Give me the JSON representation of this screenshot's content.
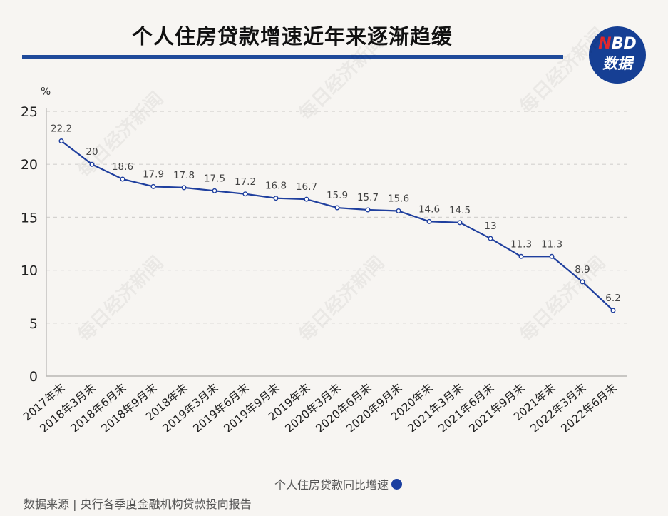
{
  "header": {
    "title": "个人住房贷款增速近年来逐渐趋缓",
    "logo_line1_accent": "N",
    "logo_line1_rest": "BD",
    "logo_line2": "数据"
  },
  "footer": {
    "legend_label": "个人住房贷款同比增速",
    "source": "数据来源 | 央行各季度金融机构贷款投向报告"
  },
  "watermark": "每日经济新闻",
  "colors": {
    "line": "#1f3f9e",
    "title_bar": "#1f4a9a",
    "logo_bg": "#163f94",
    "logo_accent": "#e0282e",
    "background": "#f7f5f2"
  },
  "chart_data": {
    "type": "line",
    "title": "个人住房贷款增速近年来逐渐趋缓",
    "xlabel": "",
    "ylabel": "%",
    "ylim": [
      0,
      25
    ],
    "yticks": [
      0,
      5,
      10,
      15,
      20,
      25
    ],
    "grid": "horizontal dashed",
    "legend_position": "bottom",
    "categories": [
      "2017年末",
      "2018年3月末",
      "2018年6月末",
      "2018年9月末",
      "2018年末",
      "2019年3月末",
      "2019年6月末",
      "2019年9月末",
      "2019年末",
      "2020年3月末",
      "2020年6月末",
      "2020年9月末",
      "2020年末",
      "2021年3月末",
      "2021年6月末",
      "2021年9月末",
      "2021年末",
      "2022年3月末",
      "2022年6月末"
    ],
    "series": [
      {
        "name": "个人住房贷款同比增速",
        "values": [
          22.2,
          20,
          18.6,
          17.9,
          17.8,
          17.5,
          17.2,
          16.8,
          16.7,
          15.9,
          15.7,
          15.6,
          14.6,
          14.5,
          13,
          11.3,
          11.3,
          8.9,
          6.2
        ]
      }
    ],
    "data_labels": [
      "22.2",
      "20",
      "18.6",
      "17.9",
      "17.8",
      "17.5",
      "17.2",
      "16.8",
      "16.7",
      "15.9",
      "15.7",
      "15.6",
      "14.6",
      "14.5",
      "13",
      "11.3",
      "11.3",
      "8.9",
      "6.2"
    ]
  }
}
